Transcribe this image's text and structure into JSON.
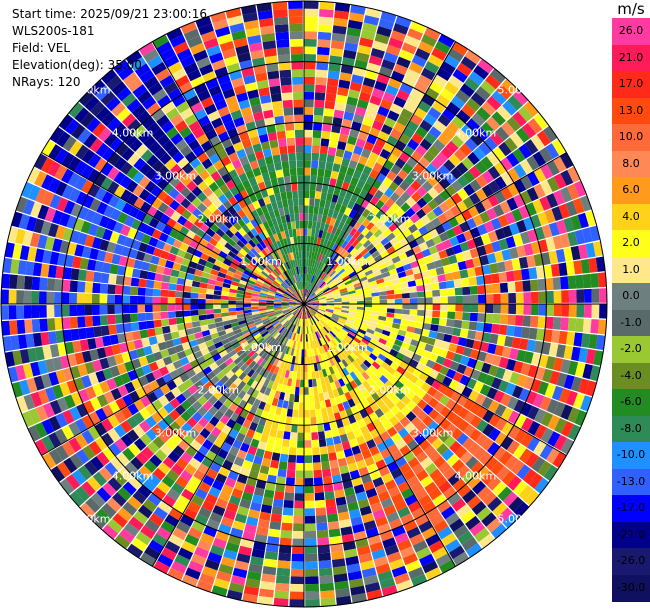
{
  "header": {
    "start_time": "Start time: 2025/09/21 23:00:16",
    "station": "WLS200s-181",
    "field": "Field: VEL",
    "elevation": "Elevation(deg): 35.00",
    "nrays": "NRays: 120"
  },
  "colorbar": {
    "unit": "m/s",
    "levels": [
      "26.0",
      "21.0",
      "17.0",
      "13.0",
      "10.0",
      "8.0",
      "6.0",
      "4.0",
      "2.0",
      "1.0",
      "0.0",
      "-1.0",
      "-2.0",
      "-4.0",
      "-6.0",
      "-8.0",
      "-10.0",
      "-13.0",
      "-17.0",
      "-21.0",
      "-26.0",
      "-30.0"
    ],
    "colors": [
      "#ff3aa0",
      "#ff1a5a",
      "#ff2a1a",
      "#ff4a10",
      "#ff6a3a",
      "#ff8855",
      "#ff9a1a",
      "#ffd21a",
      "#ffff1a",
      "#ffe88a",
      "#6e7f80",
      "#5a6a6a",
      "#9ac832",
      "#6b8e23",
      "#228b22",
      "#2e8b57",
      "#1e90ff",
      "#3060ff",
      "#0000ff",
      "#00008b",
      "#191970",
      "#101060"
    ]
  },
  "chart_data": {
    "type": "heatmap",
    "projection": "polar-ppi",
    "field": "VEL",
    "units": "m/s",
    "n_rays": 120,
    "max_range_km": 5.0,
    "range_rings_km": [
      1.0,
      2.0,
      3.0,
      4.0,
      5.0
    ],
    "ring_labels": [
      "1.00km",
      "2.00km",
      "3.00km",
      "4.00km",
      "5.00km"
    ],
    "value_ranges": [
      "-30.0",
      "26.0"
    ],
    "sectors": [
      {
        "azimuth_deg": [
          300,
          340
        ],
        "range_km": [
          3.0,
          5.0
        ],
        "velocity_ms": -17.0
      },
      {
        "azimuth_deg": [
          330,
          30
        ],
        "range_km": [
          0.3,
          2.5
        ],
        "velocity_ms": -6.0
      },
      {
        "azimuth_deg": [
          40,
          120
        ],
        "range_km": [
          0.3,
          2.5
        ],
        "velocity_ms": 2.0
      },
      {
        "azimuth_deg": [
          120,
          200
        ],
        "range_km": [
          0.3,
          2.5
        ],
        "velocity_ms": 4.0
      },
      {
        "azimuth_deg": [
          120,
          160
        ],
        "range_km": [
          2.5,
          4.5
        ],
        "velocity_ms": 13.0
      },
      {
        "azimuth_deg": [
          200,
          260
        ],
        "range_km": [
          0.3,
          2.5
        ],
        "velocity_ms": 0.0
      },
      {
        "azimuth_deg": [
          260,
          300
        ],
        "range_km": [
          2.5,
          5.0
        ],
        "velocity_ms": -13.0
      }
    ]
  }
}
